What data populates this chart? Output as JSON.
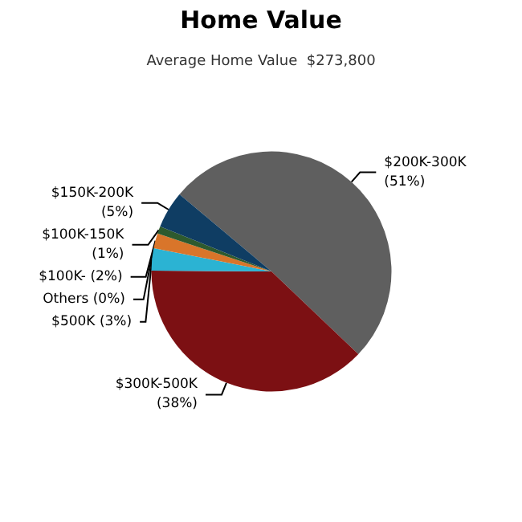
{
  "chart_data": {
    "type": "pie",
    "title": "Home Value",
    "subtitle": "Average Home Value  $273,800",
    "categories": [
      "$200K-300K",
      "$300K-500K",
      "$500K",
      "Others",
      "$100K-",
      "$100K-150K",
      "$150K-200K"
    ],
    "values": [
      51,
      38,
      3,
      0,
      2,
      1,
      5
    ],
    "colors": [
      "#5f5f5f",
      "#7c1013",
      "#2bb3d3",
      "#8a8a8a",
      "#d9752a",
      "#2e5a2e",
      "#0f3d63"
    ],
    "value_labels": [
      "(51%)",
      "(38%)",
      "(3%)",
      "(0%)",
      "(2%)",
      "(1%)",
      "(5%)"
    ],
    "legend": false
  }
}
